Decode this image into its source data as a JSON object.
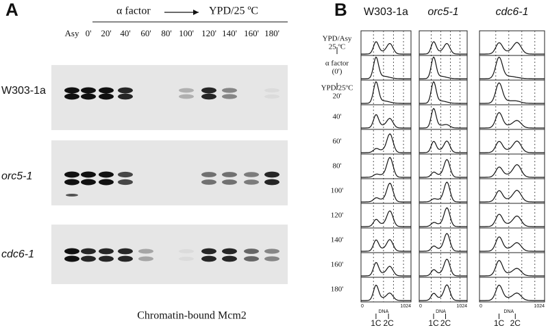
{
  "panel_a": {
    "label": "A",
    "treatment_start": "α factor",
    "treatment_end": "YPD/25 ºC",
    "lanes": [
      "Asy",
      "0'",
      "20'",
      "40'",
      "60'",
      "80'",
      "100'",
      "120'",
      "140'",
      "160'",
      "180'"
    ],
    "strains": [
      "W303-1a",
      "orc5-1",
      "cdc6-1"
    ],
    "caption": "Chromatin-bound Mcm2"
  },
  "panel_b": {
    "label": "B",
    "strains": [
      "W303-1a",
      "orc5-1",
      "cdc6-1"
    ],
    "rows": [
      [
        "YPD/Asy",
        "25 ºC"
      ],
      [
        "α factor",
        "(0')"
      ],
      [
        "YPD/25ºC",
        "20'"
      ],
      [
        "40'"
      ],
      [
        "60'"
      ],
      [
        "80'"
      ],
      [
        "100'"
      ],
      [
        "120'"
      ],
      [
        "140'"
      ],
      [
        "160'"
      ],
      [
        "180'"
      ]
    ],
    "axis_min": "0",
    "axis_max": "1024",
    "axis_label": "DNA",
    "peaks": [
      "1C",
      "2C"
    ]
  }
}
